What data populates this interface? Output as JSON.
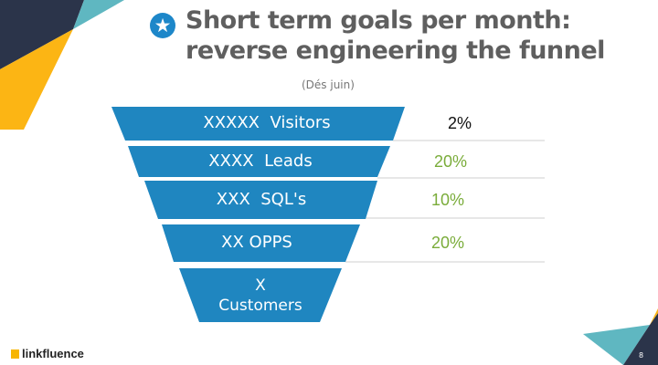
{
  "slide": {
    "title_line1": "Short term goals per month:",
    "title_line2": "reverse engineering the funnel",
    "subtitle": "(Dés juin)",
    "title_icon": "star-icon",
    "page_number": "8"
  },
  "funnel": {
    "stages": [
      {
        "count": "XXXXX",
        "label": "Visitors"
      },
      {
        "count": "XXXX",
        "label": "Leads"
      },
      {
        "count": "XXX",
        "label": "SQL's"
      },
      {
        "count": "XX",
        "label": "OPPS"
      },
      {
        "count": "X",
        "label": "Customers"
      }
    ],
    "rates": [
      {
        "value": "2%",
        "color": "#111111"
      },
      {
        "value": "20%",
        "color": "#7aac3a"
      },
      {
        "value": "10%",
        "color": "#7aac3a"
      },
      {
        "value": "20%",
        "color": "#7aac3a"
      }
    ],
    "band_color": "#1f86c0"
  },
  "footer": {
    "logo_text": "linkfluence"
  },
  "colors": {
    "navy": "#2b344a",
    "yellow": "#fcb514",
    "teal": "#5fb7c1"
  }
}
